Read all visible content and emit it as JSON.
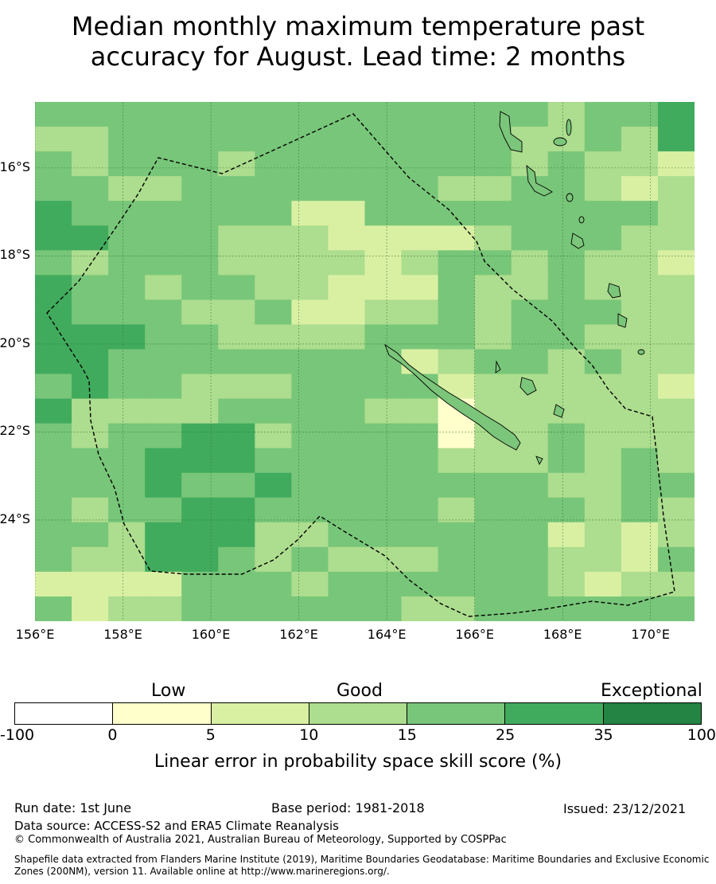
{
  "title_line1": "Median monthly maximum temperature past",
  "title_line2": "accuracy for August. Lead time: 2 months",
  "map": {
    "lon_labels": [
      "156°E",
      "158°E",
      "160°E",
      "162°E",
      "164°E",
      "166°E",
      "168°E",
      "170°E"
    ],
    "lon_values": [
      156,
      158,
      160,
      162,
      164,
      166,
      168,
      170
    ],
    "lat_labels": [
      "16°S",
      "18°S",
      "20°S",
      "22°S",
      "24°S"
    ],
    "lat_values": [
      -16,
      -18,
      -20,
      -22,
      -24
    ],
    "lon_range": [
      156,
      171
    ],
    "lat_range": [
      -14.5,
      -26.3
    ],
    "gridlines": true
  },
  "legend": {
    "categories": [
      "Low",
      "Good",
      "Exceptional"
    ],
    "ticks": [
      "-100",
      "0",
      "5",
      "10",
      "15",
      "25",
      "35",
      "100"
    ],
    "colors": [
      "#ffffff",
      "#ffffcc",
      "#d9f0a3",
      "#addd8e",
      "#78c679",
      "#41ab5d",
      "#238443"
    ],
    "label": "Linear error in probability space skill score (%)"
  },
  "footer": {
    "run_date": "Run date: 1st June",
    "base_period": "Base period: 1981-2018",
    "issued": "Issued: 23/12/2021",
    "data_source": "Data source: ACCESS-S2 and ERA5 Climate Reanalysis",
    "copyright": "© Commonwealth of Australia 2021, Australian Bureau of Meteorology, Supported by COSPPac",
    "shapefile": "Shapefile data extracted from Flanders Marine Institute (2019), Maritime Boundaries Geodatabase: Maritime Boundaries and Exclusive Economic Zones (200NM), version 11. Available online at http://www.marineregions.org/."
  },
  "grid_data": {
    "rows": 21,
    "cols": 18,
    "cells": [
      "444444444444443445",
      "334444444444433435",
      "434443444444434332",
      "443344444443344323",
      "544444422444444443",
      "554443332222344433",
      "434443333234434332",
      "544344332224334333",
      "544433422334344433",
      "555443333444344333",
      "554444444423443433",
      "454433344442333332",
      "533334444331333333",
      "434455344441334333",
      "444555444443334343",
      "444544544444443344",
      "434455444443444343",
      "443555334444442323",
      "433554343334443324",
      "222244434444443233",
      "423344444433444444"
    ]
  }
}
